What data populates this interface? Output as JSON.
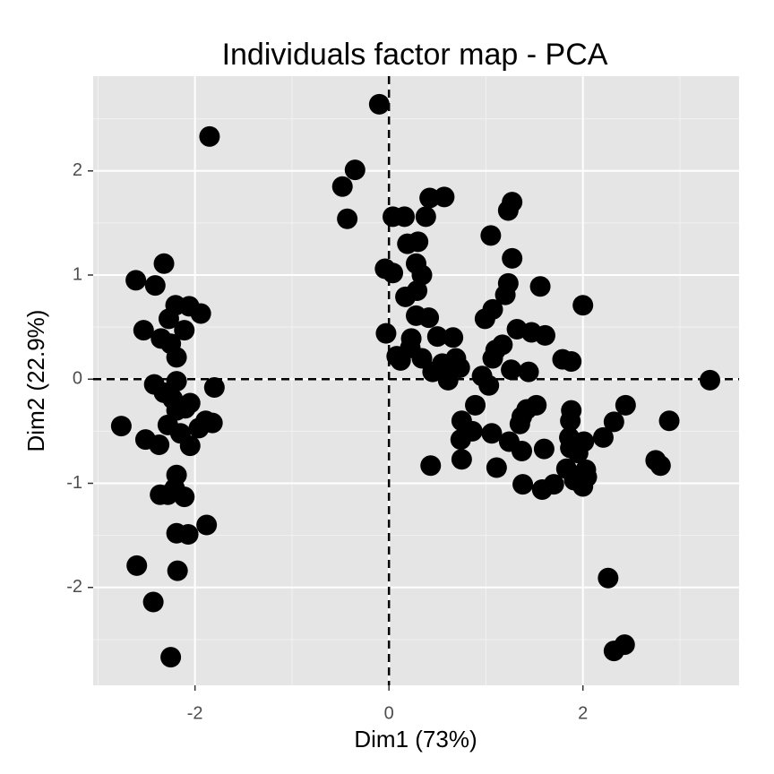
{
  "chart_data": {
    "type": "scatter",
    "title": "Individuals factor map - PCA",
    "xlabel": "Dim1 (73%)",
    "ylabel": "Dim2 (22.9%)",
    "color": "#000000",
    "grid": true,
    "hline": 0,
    "vline": 0,
    "xlim": [
      -3.05,
      3.61
    ],
    "ylim": [
      -2.94,
      2.91
    ],
    "xticks": [
      -2,
      0,
      2
    ],
    "yticks": [
      -2,
      -1,
      0,
      1,
      2
    ],
    "x": [
      -1.85,
      -2.61,
      -2.32,
      -2.41,
      -2.53,
      -2.2,
      -2.06,
      -1.94,
      -2.27,
      -2.11,
      -2.35,
      -2.25,
      -2.19,
      -2.42,
      -2.19,
      -2.32,
      -1.8,
      -2.23,
      -2.1,
      -2.05,
      -2.19,
      -2.76,
      -2.28,
      -1.89,
      -1.82,
      -1.96,
      -2.15,
      -2.51,
      -2.37,
      -2.05,
      -2.19,
      -2.21,
      -2.36,
      -2.28,
      -2.11,
      -1.88,
      -2.19,
      -2.07,
      -2.6,
      -2.18,
      -2.43,
      -2.25,
      -0.1,
      -0.35,
      -0.48,
      -0.43,
      0.04,
      0.16,
      0.42,
      0.57,
      0.38,
      1.27,
      1.23,
      1.05,
      0.19,
      0.3,
      1.27,
      -0.04,
      0.04,
      0.28,
      0.34,
      1.23,
      1.56,
      0.17,
      0.29,
      1.2,
      2.0,
      1.07,
      0.99,
      0.28,
      0.41,
      1.32,
      -0.03,
      0.5,
      0.66,
      1.47,
      1.61,
      0.23,
      0.22,
      1.17,
      1.1,
      0.08,
      0.12,
      0.34,
      1.07,
      1.79,
      1.88,
      0.69,
      0.55,
      0.61,
      0.73,
      0.45,
      1.26,
      1.44,
      0.96,
      0.61,
      1.03,
      3.31,
      0.89,
      1.52,
      1.42,
      1.88,
      2.44,
      1.37,
      0.75,
      2.32,
      2.89,
      1.35,
      1.87,
      0.86,
      1.06,
      1.86,
      2.21,
      0.74,
      1.24,
      2.01,
      1.87,
      1.6,
      1.37,
      1.95,
      2.75,
      2.8,
      0.43,
      0.75,
      1.11,
      1.83,
      2.03,
      2.04,
      1.91,
      1.38,
      1.7,
      2.0,
      1.58,
      2.26,
      2.32,
      2.43
    ],
    "values": [
      2.33,
      0.95,
      1.11,
      0.9,
      0.47,
      0.71,
      0.7,
      0.63,
      0.58,
      0.47,
      0.39,
      0.34,
      0.21,
      -0.05,
      -0.02,
      -0.13,
      -0.08,
      -0.19,
      -0.28,
      -0.23,
      -0.3,
      -0.45,
      -0.44,
      -0.4,
      -0.42,
      -0.47,
      -0.52,
      -0.58,
      -0.63,
      -0.64,
      -0.92,
      -1.05,
      -1.11,
      -1.11,
      -1.13,
      -1.4,
      -1.48,
      -1.49,
      -1.79,
      -1.84,
      -2.14,
      -2.67,
      2.64,
      2.01,
      1.85,
      1.54,
      1.56,
      1.56,
      1.74,
      1.75,
      1.56,
      1.7,
      1.62,
      1.38,
      1.3,
      1.32,
      1.16,
      1.06,
      1.02,
      1.11,
      1.0,
      0.92,
      0.89,
      0.79,
      0.85,
      0.81,
      0.71,
      0.67,
      0.58,
      0.61,
      0.59,
      0.48,
      0.44,
      0.41,
      0.4,
      0.45,
      0.42,
      0.39,
      0.3,
      0.33,
      0.28,
      0.22,
      0.18,
      0.2,
      0.2,
      0.19,
      0.17,
      0.2,
      0.15,
      0.09,
      0.11,
      0.07,
      0.09,
      0.07,
      0.03,
      -0.01,
      -0.06,
      -0.01,
      -0.25,
      -0.25,
      -0.29,
      -0.3,
      -0.25,
      -0.36,
      -0.4,
      -0.41,
      -0.4,
      -0.43,
      -0.4,
      -0.5,
      -0.52,
      -0.56,
      -0.56,
      -0.58,
      -0.6,
      -0.6,
      -0.66,
      -0.67,
      -0.69,
      -0.71,
      -0.78,
      -0.83,
      -0.83,
      -0.77,
      -0.85,
      -0.86,
      -0.87,
      -0.94,
      -0.97,
      -1.01,
      -1.01,
      -1.03,
      -1.06,
      -1.91,
      -2.61,
      -2.55
    ]
  }
}
